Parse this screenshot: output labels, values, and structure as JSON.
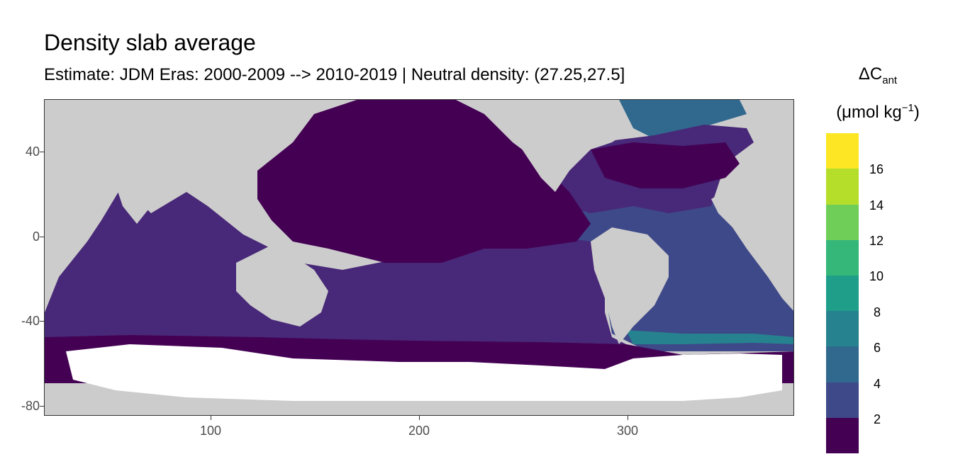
{
  "header": {
    "title": "Density slab average",
    "subtitle": "Estimate: JDM Eras: 2000-2009 --> 2010-2019 | Neutral density: (27.25,27.5]"
  },
  "axes": {
    "y_ticks": [
      "40",
      "0",
      "-40",
      "-80"
    ],
    "x_ticks": [
      "100",
      "200",
      "300"
    ]
  },
  "legend": {
    "title_symbol": "ΔC",
    "title_sub": "ant",
    "title_unit_open": "(μmol kg",
    "title_unit_sup": "−1",
    "title_unit_close": ")",
    "labels": [
      "16",
      "14",
      "12",
      "10",
      "8",
      "6",
      "4",
      "2"
    ]
  },
  "colors": {
    "land": "#cccccc",
    "no_data": "#ffffff",
    "bins": [
      "#440154",
      "#482878",
      "#3e4989",
      "#31688e",
      "#26828e",
      "#1f9e89",
      "#35b779",
      "#6ece58",
      "#b5de2b",
      "#fde725"
    ]
  },
  "chart_data": {
    "type": "heatmap",
    "x_range": [
      20,
      380
    ],
    "y_range": [
      -85,
      65
    ],
    "x_ticks": [
      100,
      200,
      300
    ],
    "y_ticks": [
      40,
      0,
      -40,
      -80
    ],
    "color_breaks": [
      0,
      2,
      4,
      6,
      8,
      10,
      12,
      14,
      16,
      18
    ],
    "legend_position": "right",
    "regions": [
      {
        "area": "Pacific north of 15S",
        "value_bin": "0-2"
      },
      {
        "area": "North Atlantic subtropical gyre",
        "value_bin": "0-2"
      },
      {
        "area": "Southern Ocean south of 60S",
        "value_bin": "0-2"
      },
      {
        "area": "Indian and South Pacific",
        "value_bin": "2-4"
      },
      {
        "area": "Tropical / South Atlantic",
        "value_bin": "4-6"
      },
      {
        "area": "Subpolar North Atlantic",
        "value_bin": "6-8"
      },
      {
        "area": "South Atlantic ~50S band",
        "value_bin": "8-10"
      }
    ]
  }
}
